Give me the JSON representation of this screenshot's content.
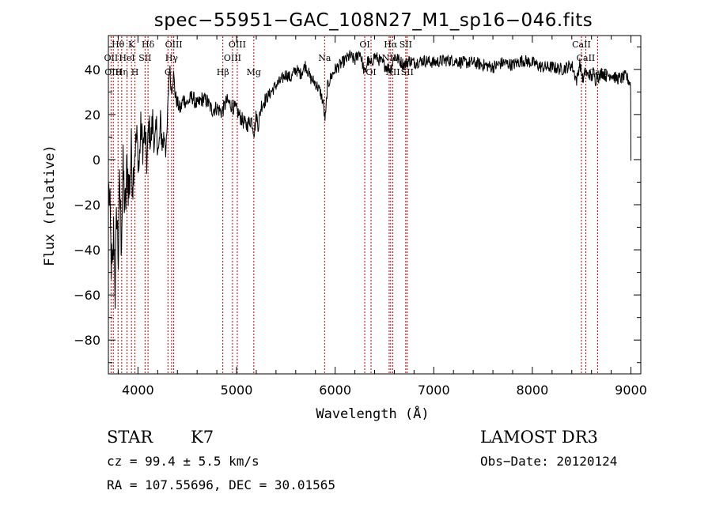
{
  "chart_data": {
    "type": "line",
    "title": "spec−55951−GAC_108N27_M1_sp16−046.fits",
    "xlabel": "Wavelength (Å)",
    "ylabel": "Flux (relative)",
    "xlim": [
      3700,
      9100
    ],
    "ylim": [
      -95,
      55
    ],
    "x_ticks": [
      4000,
      5000,
      6000,
      7000,
      8000,
      9000
    ],
    "y_ticks": [
      -80,
      -60,
      -40,
      -20,
      0,
      20,
      40
    ],
    "x_tick_labels": [
      "4000",
      "5000",
      "6000",
      "7000",
      "8000",
      "9000"
    ],
    "y_tick_labels": [
      "−80",
      "−60",
      "−40",
      "−20",
      "0",
      "20",
      "40"
    ],
    "series": [
      {
        "name": "flux",
        "x": [
          3710,
          3725,
          3740,
          3755,
          3770,
          3785,
          3800,
          3815,
          3830,
          3850,
          3870,
          3890,
          3910,
          3930,
          3950,
          3970,
          3990,
          4010,
          4030,
          4050,
          4070,
          4090,
          4110,
          4130,
          4150,
          4170,
          4190,
          4210,
          4230,
          4250,
          4270,
          4290,
          4300,
          4320,
          4340,
          4360,
          4380,
          4400,
          4430,
          4460,
          4500,
          4550,
          4600,
          4650,
          4700,
          4750,
          4800,
          4850,
          4900,
          4950,
          5000,
          5050,
          5100,
          5150,
          5180,
          5200,
          5220,
          5250,
          5300,
          5350,
          5400,
          5450,
          5500,
          5550,
          5600,
          5650,
          5700,
          5750,
          5800,
          5850,
          5880,
          5895,
          5905,
          5920,
          5950,
          6000,
          6050,
          6100,
          6150,
          6200,
          6250,
          6280,
          6300,
          6330,
          6360,
          6400,
          6450,
          6500,
          6560,
          6600,
          6650,
          6700,
          6750,
          6800,
          6900,
          7000,
          7100,
          7200,
          7300,
          7400,
          7500,
          7600,
          7700,
          7800,
          7900,
          8000,
          8100,
          8200,
          8300,
          8400,
          8450,
          8480,
          8500,
          8520,
          8540,
          8560,
          8580,
          8600,
          8620,
          8640,
          8660,
          8680,
          8700,
          8750,
          8800,
          8850,
          8900,
          8950,
          8990,
          9000
        ],
        "y": [
          -15,
          -40,
          -55,
          -30,
          -60,
          -20,
          -45,
          -10,
          -35,
          -5,
          -25,
          -2,
          -15,
          3,
          -8,
          5,
          10,
          -5,
          15,
          5,
          12,
          -2,
          15,
          8,
          18,
          5,
          14,
          2,
          16,
          6,
          12,
          3,
          20,
          42,
          30,
          38,
          28,
          25,
          22,
          27,
          25,
          28,
          24,
          27,
          26,
          22,
          23,
          21,
          26,
          24,
          22,
          18,
          15,
          18,
          12,
          20,
          15,
          24,
          27,
          30,
          33,
          35,
          38,
          36,
          40,
          38,
          42,
          36,
          34,
          30,
          25,
          18,
          20,
          32,
          36,
          40,
          42,
          44,
          46,
          44,
          48,
          42,
          38,
          44,
          42,
          46,
          44,
          42,
          40,
          46,
          44,
          42,
          44,
          43,
          44,
          43,
          44,
          44,
          43,
          43,
          42,
          41,
          43,
          42,
          44,
          43,
          41,
          41,
          40,
          42,
          35,
          43,
          38,
          35,
          40,
          37,
          38,
          36,
          39,
          35,
          38,
          36,
          39,
          37,
          38,
          36,
          36,
          37,
          34,
          32
        ]
      }
    ],
    "spectral_lines": [
      {
        "label": "Hθ",
        "x": 3798,
        "row": 1
      },
      {
        "label": "OII",
        "x": 3727,
        "row": 2
      },
      {
        "label": "OIII",
        "x": 3750,
        "row": 3
      },
      {
        "label": "K",
        "x": 3934,
        "row": 1
      },
      {
        "label": "HeI",
        "x": 3889,
        "row": 2
      },
      {
        "label": "Hη",
        "x": 3835,
        "row": 3
      },
      {
        "label": "Hδ",
        "x": 4102,
        "row": 1
      },
      {
        "label": "SII",
        "x": 4072,
        "row": 2
      },
      {
        "label": "H",
        "x": 3969,
        "row": 3
      },
      {
        "label": "OIII",
        "x": 4363,
        "row": 1
      },
      {
        "label": "Hγ",
        "x": 4341,
        "row": 2
      },
      {
        "label": "G",
        "x": 4304,
        "row": 3
      },
      {
        "label": "OIII",
        "x": 5007,
        "row": 1
      },
      {
        "label": "OIII",
        "x": 4959,
        "row": 2
      },
      {
        "label": "Hβ",
        "x": 4861,
        "row": 3
      },
      {
        "label": "Mg",
        "x": 5175,
        "row": 3
      },
      {
        "label": "Na",
        "x": 5893,
        "row": 2
      },
      {
        "label": "OI",
        "x": 6300,
        "row": 1
      },
      {
        "label": "OI",
        "x": 6364,
        "row": 3
      },
      {
        "label": "Hα",
        "x": 6563,
        "row": 1
      },
      {
        "label": "NII",
        "x": 6548,
        "row": 2
      },
      {
        "label": "NII",
        "x": 6584,
        "row": 3
      },
      {
        "label": "SII",
        "x": 6716,
        "row": 1
      },
      {
        "label": "SII",
        "x": 6731,
        "row": 3
      },
      {
        "label": "CaII",
        "x": 8498,
        "row": 1
      },
      {
        "label": "CaII",
        "x": 8542,
        "row": 2
      },
      {
        "label": "CaII",
        "x": 8662,
        "row": 3
      }
    ]
  },
  "info": {
    "object_class": "STAR",
    "subclass": "K7",
    "survey": "LAMOST DR3",
    "redshift": "cz = 99.4 ± 5.5 km/s",
    "obs_date": "Obs−Date: 20120124",
    "coords": "RA = 107.55696, DEC =  30.01565"
  },
  "colors": {
    "spectrum": "#000000",
    "line_markers": "#c00000",
    "background": "#ffffff"
  }
}
